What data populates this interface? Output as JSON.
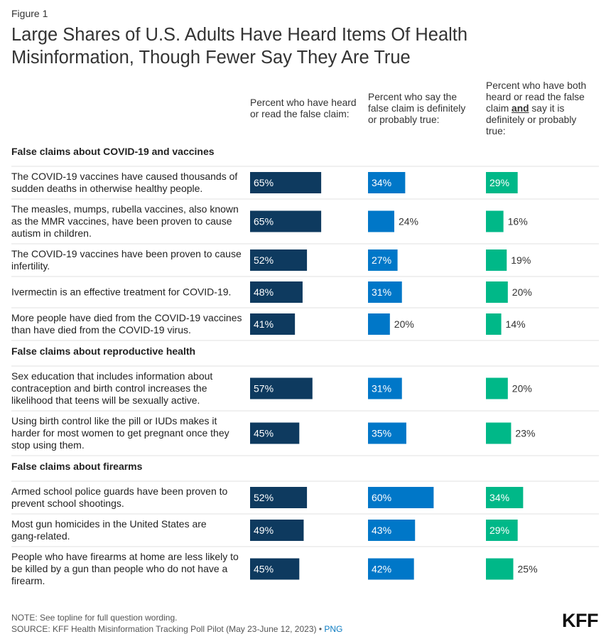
{
  "figure_label": "Figure 1",
  "title": "Large Shares of U.S. Adults Have Heard Items Of Health Misinformation, Though Fewer Say They Are True",
  "columns": [
    {
      "label": "Percent who have heard or read the false claim:",
      "color": "#0e3a5f"
    },
    {
      "label": "Percent who say the false claim is definitely or probably true:",
      "color": "#0077c8"
    },
    {
      "label_before": "Percent who have both heard or read the false claim ",
      "label_bold": "and",
      "label_after": " say it is definitely or probably true:",
      "color": "#00b888"
    }
  ],
  "chart_data": {
    "type": "bar",
    "value_suffix": "%",
    "groups": [
      {
        "name": "False claims about COVID-19 and vaccines",
        "claims": [
          {
            "text": "The COVID-19 vaccines have caused thousands of sudden deaths in otherwise healthy people.",
            "values": [
              65,
              34,
              29
            ]
          },
          {
            "text": "The measles, mumps, rubella vaccines, also known as the MMR vaccines, have been proven to cause autism in children.",
            "values": [
              65,
              24,
              16
            ]
          },
          {
            "text": "The COVID-19 vaccines have been proven to cause infertility.",
            "values": [
              52,
              27,
              19
            ]
          },
          {
            "text": "Ivermectin is an effective treatment for COVID-19.",
            "values": [
              48,
              31,
              20
            ]
          },
          {
            "text": "More people have died from the COVID-19 vaccines than have died from the COVID-19 virus.",
            "values": [
              41,
              20,
              14
            ]
          }
        ]
      },
      {
        "name": "False claims about reproductive health",
        "claims": [
          {
            "text": "Sex education that includes information about contraception and birth control increases the likelihood that teens will be sexually active.",
            "values": [
              57,
              31,
              20
            ]
          },
          {
            "text": "Using birth control like the pill or IUDs makes it harder for most women to get pregnant once they stop using them.",
            "values": [
              45,
              35,
              23
            ]
          }
        ]
      },
      {
        "name": "False claims about firearms",
        "claims": [
          {
            "text": "Armed school police guards have been proven to prevent school shootings.",
            "values": [
              52,
              60,
              34
            ]
          },
          {
            "text": "Most gun homicides in the United States are gang-related.",
            "values": [
              49,
              43,
              29
            ]
          },
          {
            "text": "People who have firearms at home are less likely to be killed by a gun than people who do not have a firearm.",
            "values": [
              45,
              42,
              25
            ]
          }
        ]
      }
    ]
  },
  "note": "NOTE: See topline for full question wording.",
  "source_text": "SOURCE: KFF Health Misinformation Tracking Poll Pilot (May 23-June 12, 2023) •",
  "png_link": "PNG",
  "logo": "KFF"
}
